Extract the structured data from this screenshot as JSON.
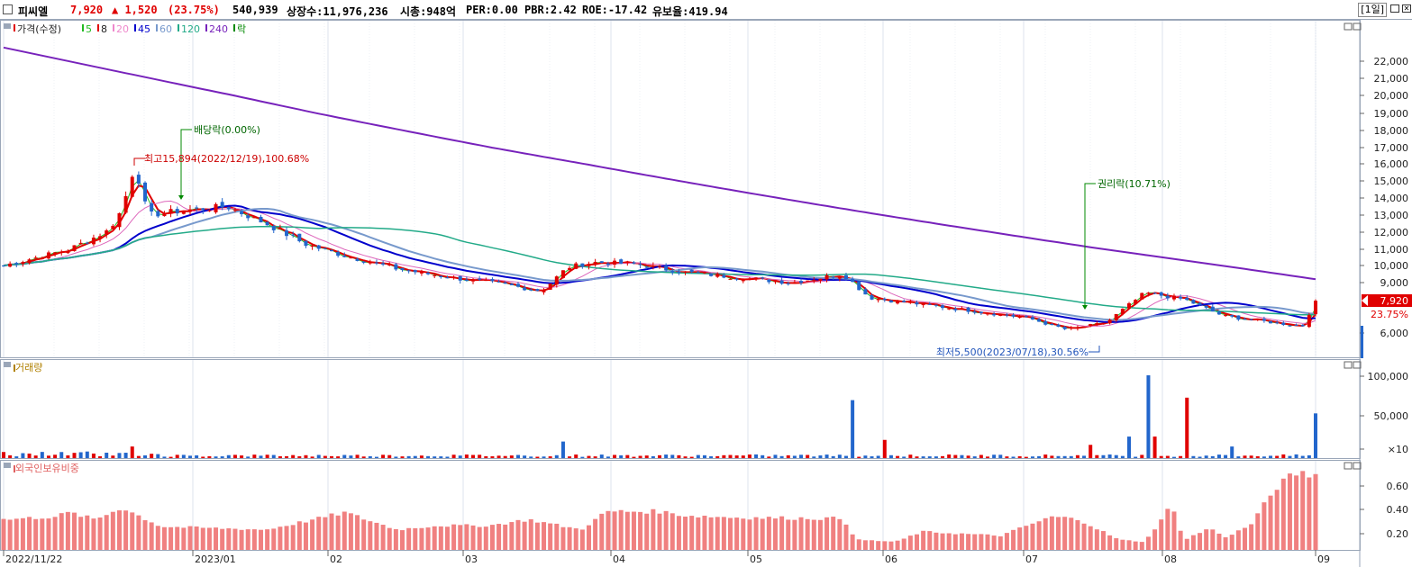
{
  "header": {
    "stock_name": "피씨엘",
    "price": "7,920",
    "change": "▲ 1,520",
    "change_pct": "(23.75%)",
    "volume": "540,939",
    "listed_shares": "상장수:11,976,236",
    "market_cap": "시총:948억",
    "per": "PER:0.00",
    "pbr": "PBR:2.42",
    "roe": "ROE:-17.42",
    "retention": "유보율:419.94",
    "period": "[1일]"
  },
  "price_panel": {
    "legend": [
      {
        "label": "가격(수정)",
        "color": "#e00000"
      },
      {
        "label": "5",
        "color": "#22bb22"
      },
      {
        "label": "8",
        "color": "#e00000"
      },
      {
        "label": "20",
        "color": "#ee88cc"
      },
      {
        "label": "45",
        "color": "#0000cc"
      },
      {
        "label": "60",
        "color": "#7799cc"
      },
      {
        "label": "120",
        "color": "#22aa88"
      },
      {
        "label": "240",
        "color": "#7722bb"
      },
      {
        "label": "락",
        "color": "#008800"
      }
    ],
    "y_ticks": [
      "22,000",
      "21,000",
      "20,000",
      "19,000",
      "18,000",
      "17,000",
      "16,000",
      "15,000",
      "14,000",
      "13,000",
      "12,000",
      "11,000",
      "10,000",
      "9,000",
      "6,000"
    ],
    "current_price_label": "7,920",
    "current_pct_label": "23.75%",
    "annotations": {
      "dividend": "배당락(0.00%)",
      "high": "최고15,894(2022/12/19),100.68%",
      "rights": "권리락(10.71%)",
      "low": "최저5,500(2023/07/18),30.56%"
    }
  },
  "volume_panel": {
    "legend": "거래량",
    "y_ticks": [
      "100,000",
      "50,000",
      "×10"
    ]
  },
  "foreign_panel": {
    "legend": "외국인보유비중",
    "y_ticks": [
      "0.60",
      "0.40",
      "0.20"
    ]
  },
  "x_axis": {
    "labels": [
      "2022/11/22",
      "2023/01",
      "02",
      "03",
      "04",
      "05",
      "06",
      "07",
      "08",
      "09"
    ]
  },
  "chart_data": {
    "type": "candlestick",
    "start_date": "2022/11/22",
    "end_date": "2023/09",
    "high": {
      "value": 15894,
      "date": "2022/12/19",
      "pct": 100.68
    },
    "low": {
      "value": 5500,
      "date": "2023/07/18",
      "pct": 30.56
    },
    "last_close": 7920,
    "moving_averages": [
      "5",
      "8",
      "20",
      "45",
      "60",
      "120",
      "240"
    ],
    "price_keypoints": [
      [
        0,
        10000
      ],
      [
        0.02,
        10400
      ],
      [
        0.05,
        11000
      ],
      [
        0.08,
        12100
      ],
      [
        0.09,
        13300
      ],
      [
        0.1,
        15894
      ],
      [
        0.11,
        13000
      ],
      [
        0.14,
        13300
      ],
      [
        0.17,
        13500
      ],
      [
        0.2,
        12500
      ],
      [
        0.23,
        11300
      ],
      [
        0.26,
        10600
      ],
      [
        0.3,
        9800
      ],
      [
        0.34,
        9300
      ],
      [
        0.38,
        8900
      ],
      [
        0.41,
        8500
      ],
      [
        0.43,
        9900
      ],
      [
        0.45,
        10200
      ],
      [
        0.48,
        10100
      ],
      [
        0.52,
        9600
      ],
      [
        0.56,
        9300
      ],
      [
        0.6,
        9000
      ],
      [
        0.64,
        9500
      ],
      [
        0.66,
        8100
      ],
      [
        0.7,
        7700
      ],
      [
        0.74,
        7300
      ],
      [
        0.78,
        6900
      ],
      [
        0.81,
        6200
      ],
      [
        0.84,
        6600
      ],
      [
        0.87,
        8400
      ],
      [
        0.9,
        8000
      ],
      [
        0.93,
        7000
      ],
      [
        0.96,
        6700
      ],
      [
        0.99,
        6400
      ],
      [
        1.0,
        7920
      ]
    ],
    "vol_spikes": [
      {
        "x": 0.1,
        "v": 14000
      },
      {
        "x": 0.428,
        "v": 20000
      },
      {
        "x": 0.645,
        "v": 70000
      },
      {
        "x": 0.67,
        "v": 22000
      },
      {
        "x": 0.83,
        "v": 16000
      },
      {
        "x": 0.856,
        "v": 26000
      },
      {
        "x": 0.871,
        "v": 100000
      },
      {
        "x": 0.876,
        "v": 26000
      },
      {
        "x": 0.904,
        "v": 73000
      },
      {
        "x": 0.935,
        "v": 14000
      },
      {
        "x": 1.0,
        "v": 54000
      }
    ],
    "foreign_keypoints": [
      [
        0,
        0.3
      ],
      [
        0.04,
        0.33
      ],
      [
        0.05,
        0.37
      ],
      [
        0.07,
        0.3
      ],
      [
        0.09,
        0.42
      ],
      [
        0.12,
        0.23
      ],
      [
        0.2,
        0.2
      ],
      [
        0.24,
        0.31
      ],
      [
        0.26,
        0.37
      ],
      [
        0.3,
        0.2
      ],
      [
        0.33,
        0.24
      ],
      [
        0.37,
        0.24
      ],
      [
        0.4,
        0.3
      ],
      [
        0.44,
        0.2
      ],
      [
        0.46,
        0.38
      ],
      [
        0.5,
        0.38
      ],
      [
        0.52,
        0.34
      ],
      [
        0.56,
        0.32
      ],
      [
        0.64,
        0.31
      ],
      [
        0.65,
        0.1
      ],
      [
        0.68,
        0.08
      ],
      [
        0.7,
        0.18
      ],
      [
        0.76,
        0.14
      ],
      [
        0.78,
        0.24
      ],
      [
        0.8,
        0.33
      ],
      [
        0.82,
        0.3
      ],
      [
        0.85,
        0.1
      ],
      [
        0.87,
        0.08
      ],
      [
        0.89,
        0.44
      ],
      [
        0.9,
        0.1
      ],
      [
        0.92,
        0.22
      ],
      [
        0.93,
        0.12
      ],
      [
        0.95,
        0.24
      ],
      [
        0.97,
        0.62
      ],
      [
        0.985,
        0.76
      ],
      [
        1.0,
        0.74
      ]
    ]
  }
}
